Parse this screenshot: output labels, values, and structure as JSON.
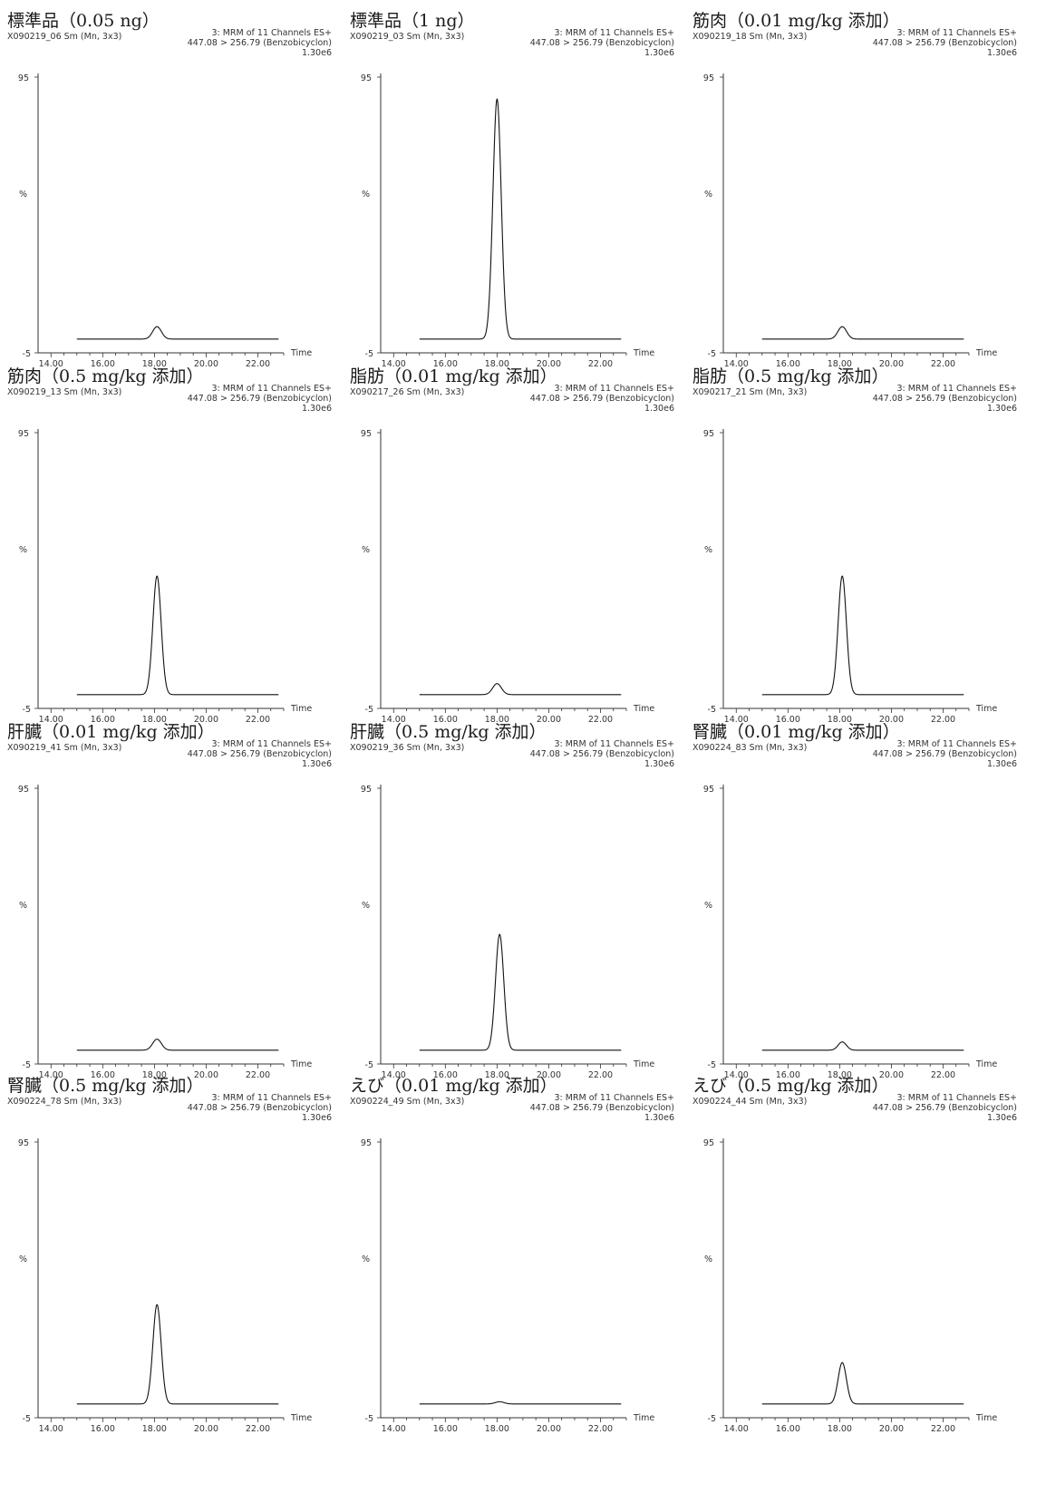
{
  "common": {
    "y_max_label": "95",
    "y_min_label": "-5",
    "y_axis_label": "%",
    "x_axis_label": "Time",
    "x_ticks": [
      "14.00",
      "16.00",
      "18.00",
      "20.00",
      "22.00"
    ]
  },
  "chart_data": [
    {
      "type": "line",
      "title": "標準品（0.05 ng）",
      "file": "X090219_06 Sm (Mn, 3x3)",
      "channel": "3: MRM of 11 Channels ES+",
      "transition": "447.08 > 256.79 (Benzobicyclon)",
      "intensity": "1.30e6",
      "xlim": [
        13.5,
        23.0
      ],
      "ylim": [
        -5,
        95
      ],
      "baseline": 0,
      "peak": {
        "rt": 18.1,
        "height": 4.5,
        "width": 0.17
      }
    },
    {
      "type": "line",
      "title": "標準品（1 ng）",
      "file": "X090219_03 Sm (Mn, 3x3)",
      "channel": "3: MRM of 11 Channels ES+",
      "transition": "447.08 > 256.79 (Benzobicyclon)",
      "intensity": "1.30e6",
      "xlim": [
        13.5,
        23.0
      ],
      "ylim": [
        -5,
        95
      ],
      "baseline": 0,
      "peak": {
        "rt": 18.0,
        "height": 87,
        "width": 0.16
      }
    },
    {
      "type": "line",
      "title": "筋肉（0.01 mg/kg 添加）",
      "file": "X090219_18 Sm (Mn, 3x3)",
      "channel": "3: MRM of 11 Channels ES+",
      "transition": "447.08 > 256.79 (Benzobicyclon)",
      "intensity": "1.30e6",
      "xlim": [
        13.5,
        23.0
      ],
      "ylim": [
        -5,
        95
      ],
      "baseline": 0,
      "peak": {
        "rt": 18.1,
        "height": 4.5,
        "width": 0.17
      }
    },
    {
      "type": "line",
      "title": "筋肉（0.5 mg/kg 添加）",
      "file": "X090219_13 Sm (Mn, 3x3)",
      "channel": "3: MRM of 11 Channels ES+",
      "transition": "447.08 > 256.79 (Benzobicyclon)",
      "intensity": "1.30e6",
      "xlim": [
        13.5,
        23.0
      ],
      "ylim": [
        -5,
        95
      ],
      "baseline": 0,
      "peak": {
        "rt": 18.1,
        "height": 43,
        "width": 0.16
      }
    },
    {
      "type": "line",
      "title": "脂肪（0.01 mg/kg 添加）",
      "file": "X090217_26 Sm (Mn, 3x3)",
      "channel": "3: MRM of 11 Channels ES+",
      "transition": "447.08 > 256.79 (Benzobicyclon)",
      "intensity": "1.30e6",
      "xlim": [
        13.5,
        23.0
      ],
      "ylim": [
        -5,
        95
      ],
      "baseline": 0,
      "peak": {
        "rt": 18.0,
        "height": 4,
        "width": 0.17
      }
    },
    {
      "type": "line",
      "title": "脂肪（0.5 mg/kg 添加）",
      "file": "X090217_21 Sm (Mn, 3x3)",
      "channel": "3: MRM of 11 Channels ES+",
      "transition": "447.08 > 256.79 (Benzobicyclon)",
      "intensity": "1.30e6",
      "xlim": [
        13.5,
        23.0
      ],
      "ylim": [
        -5,
        95
      ],
      "baseline": 0,
      "peak": {
        "rt": 18.1,
        "height": 43,
        "width": 0.16
      }
    },
    {
      "type": "line",
      "title": "肝臓（0.01 mg/kg 添加）",
      "file": "X090219_41 Sm (Mn, 3x3)",
      "channel": "3: MRM of 11 Channels ES+",
      "transition": "447.08 > 256.79 (Benzobicyclon)",
      "intensity": "1.30e6",
      "xlim": [
        13.5,
        23.0
      ],
      "ylim": [
        -5,
        95
      ],
      "baseline": 0,
      "peak": {
        "rt": 18.1,
        "height": 4,
        "width": 0.17
      }
    },
    {
      "type": "line",
      "title": "肝臓（0.5 mg/kg 添加）",
      "file": "X090219_36 Sm (Mn, 3x3)",
      "channel": "3: MRM of 11 Channels ES+",
      "transition": "447.08 > 256.79 (Benzobicyclon)",
      "intensity": "1.30e6",
      "xlim": [
        13.5,
        23.0
      ],
      "ylim": [
        -5,
        95
      ],
      "baseline": 0,
      "peak": {
        "rt": 18.1,
        "height": 42,
        "width": 0.16
      }
    },
    {
      "type": "line",
      "title": "腎臓（0.01 mg/kg 添加）",
      "file": "X090224_83 Sm (Mn, 3x3)",
      "channel": "3: MRM of 11 Channels ES+",
      "transition": "447.08 > 256.79 (Benzobicyclon)",
      "intensity": "1.30e6",
      "xlim": [
        13.5,
        23.0
      ],
      "ylim": [
        -5,
        95
      ],
      "baseline": 0,
      "peak": {
        "rt": 18.1,
        "height": 3,
        "width": 0.16
      }
    },
    {
      "type": "line",
      "title": "腎臓（0.5 mg/kg 添加）",
      "file": "X090224_78 Sm (Mn, 3x3)",
      "channel": "3: MRM of 11 Channels ES+",
      "transition": "447.08 > 256.79 (Benzobicyclon)",
      "intensity": "1.30e6",
      "xlim": [
        13.5,
        23.0
      ],
      "ylim": [
        -5,
        95
      ],
      "baseline": 0,
      "peak": {
        "rt": 18.1,
        "height": 36,
        "width": 0.16
      }
    },
    {
      "type": "line",
      "title": "えび（0.01 mg/kg 添加）",
      "file": "X090224_49 Sm (Mn, 3x3)",
      "channel": "3: MRM of 11 Channels ES+",
      "transition": "447.08 > 256.79 (Benzobicyclon)",
      "intensity": "1.30e6",
      "xlim": [
        13.5,
        23.0
      ],
      "ylim": [
        -5,
        95
      ],
      "baseline": 0,
      "peak": {
        "rt": 18.1,
        "height": 0.8,
        "width": 0.17
      }
    },
    {
      "type": "line",
      "title": "えび（0.5 mg/kg 添加）",
      "file": "X090224_44 Sm (Mn, 3x3)",
      "channel": "3: MRM of 11 Channels ES+",
      "transition": "447.08 > 256.79 (Benzobicyclon)",
      "intensity": "1.30e6",
      "xlim": [
        13.5,
        23.0
      ],
      "ylim": [
        -5,
        95
      ],
      "baseline": 0,
      "peak": {
        "rt": 18.1,
        "height": 15,
        "width": 0.16
      }
    }
  ]
}
